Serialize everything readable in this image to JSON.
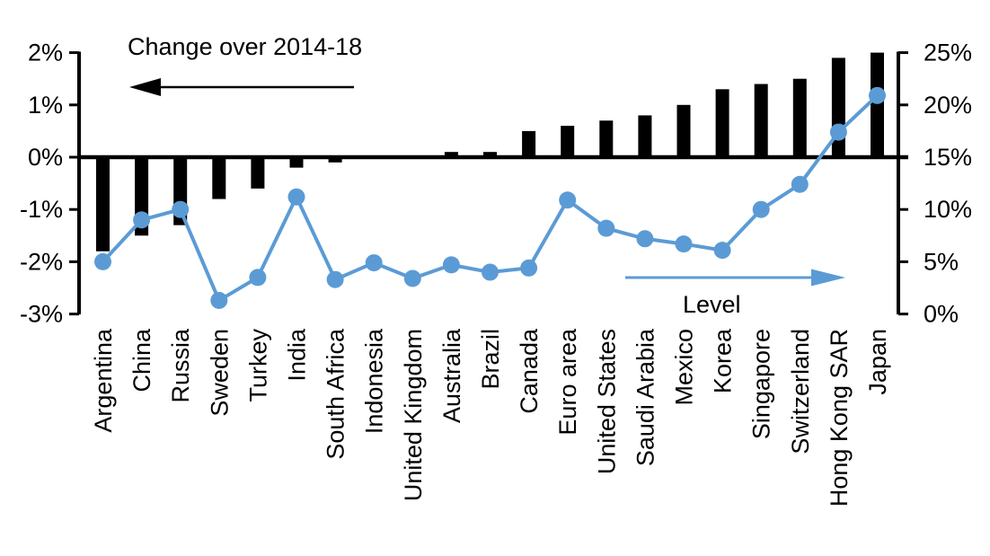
{
  "chart_data": {
    "type": "combo-bar-line",
    "title": "",
    "categories": [
      "Argentina",
      "China",
      "Russia",
      "Sweden",
      "Turkey",
      "India",
      "South Africa",
      "Indonesia",
      "United Kingdom",
      "Australia",
      "Brazil",
      "Canada",
      "Euro area",
      "United States",
      "Saudi Arabia",
      "Mexico",
      "Korea",
      "Singapore",
      "Switzerland",
      "Hong Kong SAR",
      "Japan"
    ],
    "series": [
      {
        "name": "Change over 2014-18",
        "type": "bar",
        "axis": "left",
        "color": "#000000",
        "values": [
          -1.8,
          -1.5,
          -1.3,
          -0.8,
          -0.6,
          -0.2,
          -0.1,
          0,
          0,
          0.1,
          0.1,
          0.5,
          0.6,
          0.7,
          0.8,
          1.0,
          1.3,
          1.4,
          1.5,
          1.9,
          2.0
        ]
      },
      {
        "name": "Level",
        "type": "line",
        "axis": "right",
        "color": "#5B9BD5",
        "values": [
          5.0,
          9.0,
          10.0,
          1.3,
          3.5,
          11.2,
          3.3,
          4.9,
          3.4,
          4.7,
          4.0,
          4.4,
          10.9,
          8.2,
          7.2,
          6.7,
          6.1,
          10.0,
          12.4,
          17.4,
          20.9
        ]
      }
    ],
    "left_axis": {
      "min": -3,
      "max": 2,
      "tick_step": 1,
      "tick_labels": [
        "2%",
        "1%",
        "0%",
        "-1%",
        "-2%",
        "-3%"
      ],
      "unit": "%"
    },
    "right_axis": {
      "min": 0,
      "max": 25,
      "tick_step": 5,
      "tick_labels": [
        "25%",
        "20%",
        "15%",
        "10%",
        "5%",
        "0%"
      ],
      "unit": "%"
    },
    "grid": false,
    "legend_position": "none",
    "annotations": [
      {
        "text": "Change over 2014-18",
        "arrow_direction": "left",
        "arrow_color": "#000000"
      },
      {
        "text": "Level",
        "arrow_direction": "right",
        "arrow_color": "#5B9BD5"
      }
    ]
  }
}
